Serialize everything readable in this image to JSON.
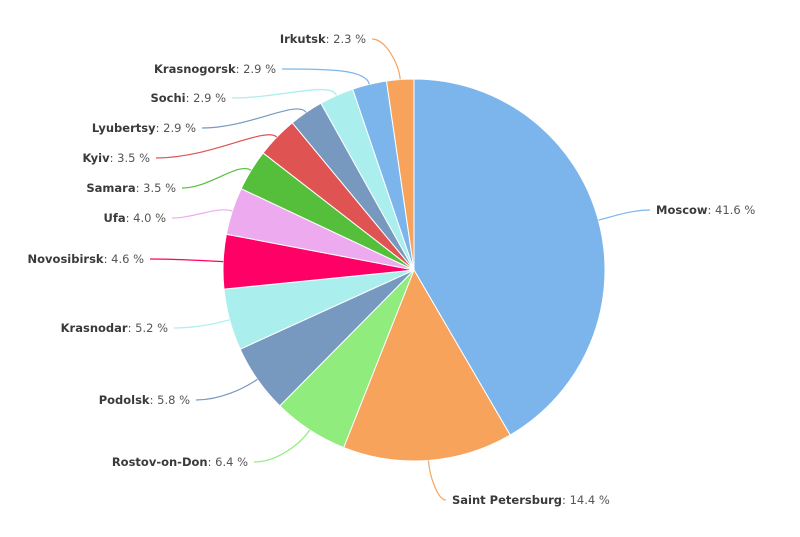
{
  "chart_data": {
    "type": "pie",
    "title": "",
    "unit_suffix": " %",
    "slices": [
      {
        "label": "Moscow",
        "value": 41.6,
        "color": "#7cb5ec"
      },
      {
        "label": "Saint Petersburg",
        "value": 14.4,
        "color": "#f7a35c"
      },
      {
        "label": "Rostov-on-Don",
        "value": 6.4,
        "color": "#90ed7d"
      },
      {
        "label": "Podolsk",
        "value": 5.8,
        "color": "#7798bf"
      },
      {
        "label": "Krasnodar",
        "value": 5.2,
        "color": "#aaeeee"
      },
      {
        "label": "Novosibirsk",
        "value": 4.6,
        "color": "#ff0066"
      },
      {
        "label": "Ufa",
        "value": 4.0,
        "color": "#eeaaee"
      },
      {
        "label": "Samara",
        "value": 3.5,
        "color": "#55bf3b"
      },
      {
        "label": "Kyiv",
        "value": 3.5,
        "color": "#df5353"
      },
      {
        "label": "Lyubertsy",
        "value": 2.9,
        "color": "#7798bf"
      },
      {
        "label": "Sochi",
        "value": 2.9,
        "color": "#aaeeee"
      },
      {
        "label": "Krasnogorsk",
        "value": 2.9,
        "color": "#7cb5ec"
      },
      {
        "label": "Irkutsk",
        "value": 2.3,
        "color": "#f7a35c"
      }
    ]
  }
}
